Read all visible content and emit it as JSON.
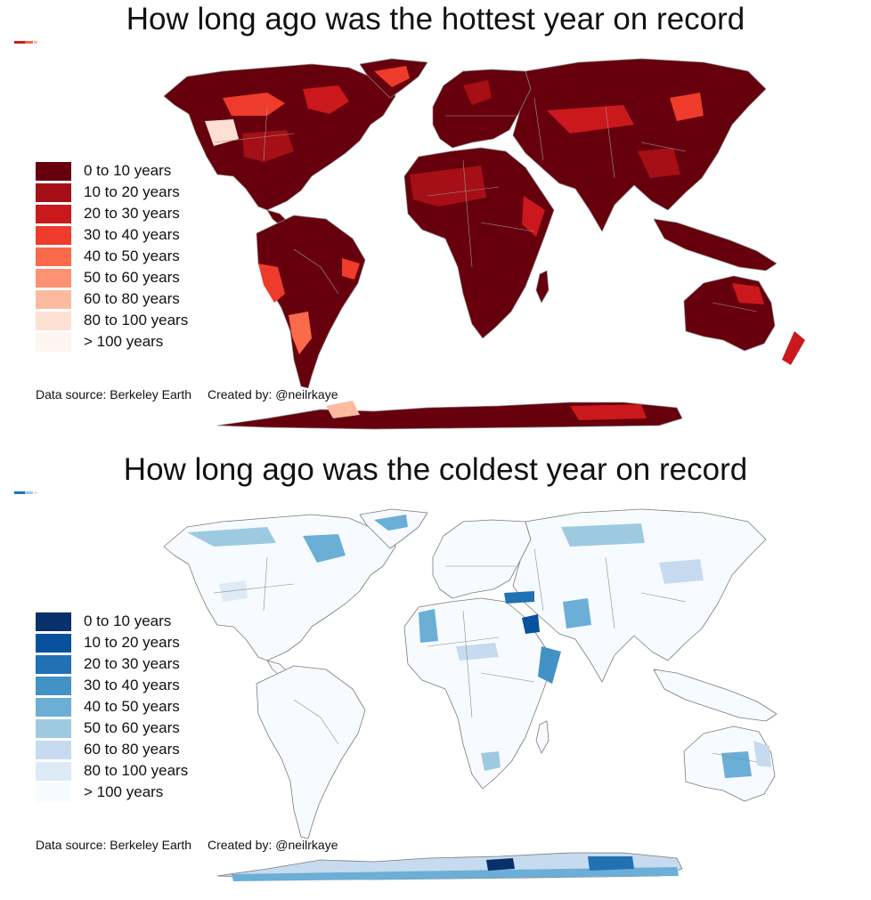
{
  "panels": [
    {
      "title": "How long ago was the hottest year on record",
      "scheme": "reds",
      "corner_mark_colors": [
        "#c0201c",
        "#f06a4a",
        "#fcbba1"
      ],
      "legend": [
        {
          "label": "0 to 10 years",
          "color": "#67000d"
        },
        {
          "label": "10 to 20 years",
          "color": "#a50f15"
        },
        {
          "label": "20 to 30 years",
          "color": "#cb181d"
        },
        {
          "label": "30 to 40 years",
          "color": "#ef3b2c"
        },
        {
          "label": "40 to 50 years",
          "color": "#fb6a4a"
        },
        {
          "label": "50 to 60 years",
          "color": "#fc9272"
        },
        {
          "label": "60 to 80 years",
          "color": "#fcbba1"
        },
        {
          "label": "80 to 100 years",
          "color": "#fee0d2"
        },
        {
          "label": "> 100 years",
          "color": "#fff5f0"
        }
      ],
      "source": "Data source: Berkeley Earth",
      "creator": "Created by: @neilrkaye"
    },
    {
      "title": "How long ago was the coldest year on record",
      "scheme": "blues",
      "corner_mark_colors": [
        "#2171b5",
        "#9ecae1",
        "#deebf7"
      ],
      "legend": [
        {
          "label": "0 to 10 years",
          "color": "#08306b"
        },
        {
          "label": "10 to 20 years",
          "color": "#08519c"
        },
        {
          "label": "20 to 30 years",
          "color": "#2171b5"
        },
        {
          "label": "30 to 40 years",
          "color": "#4292c6"
        },
        {
          "label": "40 to 50 years",
          "color": "#6baed6"
        },
        {
          "label": "50 to 60 years",
          "color": "#9ecae1"
        },
        {
          "label": "60 to 80 years",
          "color": "#c6dbef"
        },
        {
          "label": "80 to 100 years",
          "color": "#deebf7"
        },
        {
          "label": "> 100 years",
          "color": "#f7fbff"
        }
      ],
      "source": "Data source: Berkeley Earth",
      "creator": "Created by: @neilrkaye"
    }
  ]
}
